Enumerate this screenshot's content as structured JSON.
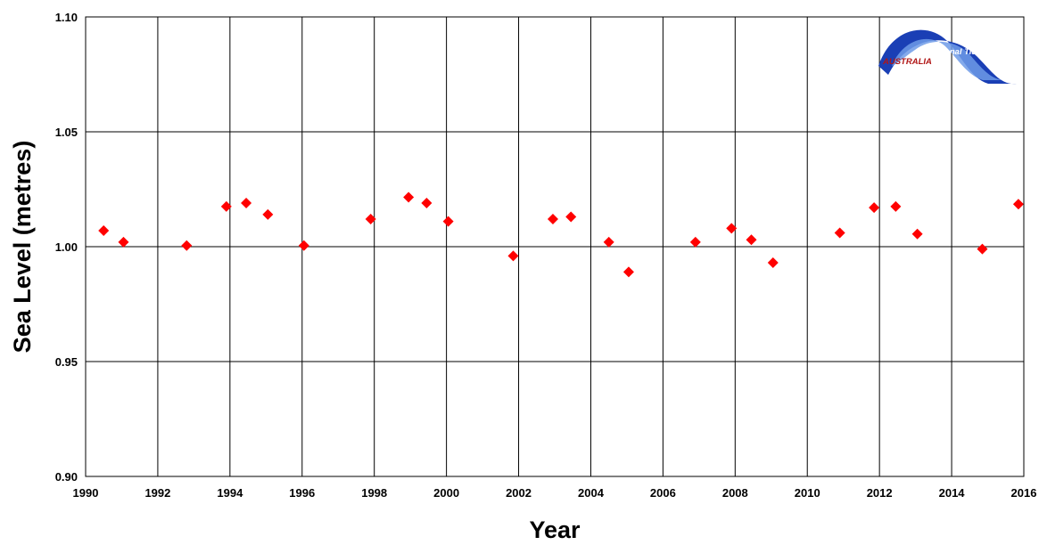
{
  "chart_data": {
    "type": "scatter",
    "xlabel": "Year",
    "ylabel": "Sea Level (metres)",
    "xlim": [
      1990,
      2016
    ],
    "ylim": [
      0.9,
      1.1
    ],
    "x_ticks": [
      "1990",
      "1992",
      "1994",
      "1996",
      "1998",
      "2000",
      "2002",
      "2004",
      "2006",
      "2008",
      "2010",
      "2012",
      "2014",
      "2016"
    ],
    "y_ticks": [
      "0.90",
      "0.95",
      "1.00",
      "1.05",
      "1.10"
    ],
    "grid": true,
    "marker_color": "#ff0000",
    "marker_shape": "diamond",
    "series": [
      {
        "x": [
          1990.5,
          1991.05,
          1992.8,
          1993.9,
          1994.45,
          1995.05,
          1996.05,
          1997.9,
          1998.95,
          1999.45,
          2000.05,
          2001.85,
          2002.95,
          2003.45,
          2004.5,
          2005.05,
          2006.9,
          2007.9,
          2008.45,
          2009.05,
          2010.9,
          2011.85,
          2012.45,
          2013.05,
          2014.85,
          2015.85
        ],
        "y": [
          1.007,
          1.002,
          1.0005,
          1.0175,
          1.019,
          1.014,
          1.0005,
          1.012,
          1.0215,
          1.019,
          1.011,
          0.996,
          1.012,
          1.013,
          1.002,
          0.989,
          1.002,
          1.008,
          1.003,
          0.993,
          1.006,
          1.017,
          1.0175,
          1.0055,
          0.999,
          1.0185
        ]
      }
    ]
  },
  "logo": {
    "line1": "National Tidal Facility",
    "line2": "AUSTRALIA",
    "color_line1": "#ffffff",
    "color_line2": "#b01515",
    "wave_color": "#1a3fb5"
  }
}
